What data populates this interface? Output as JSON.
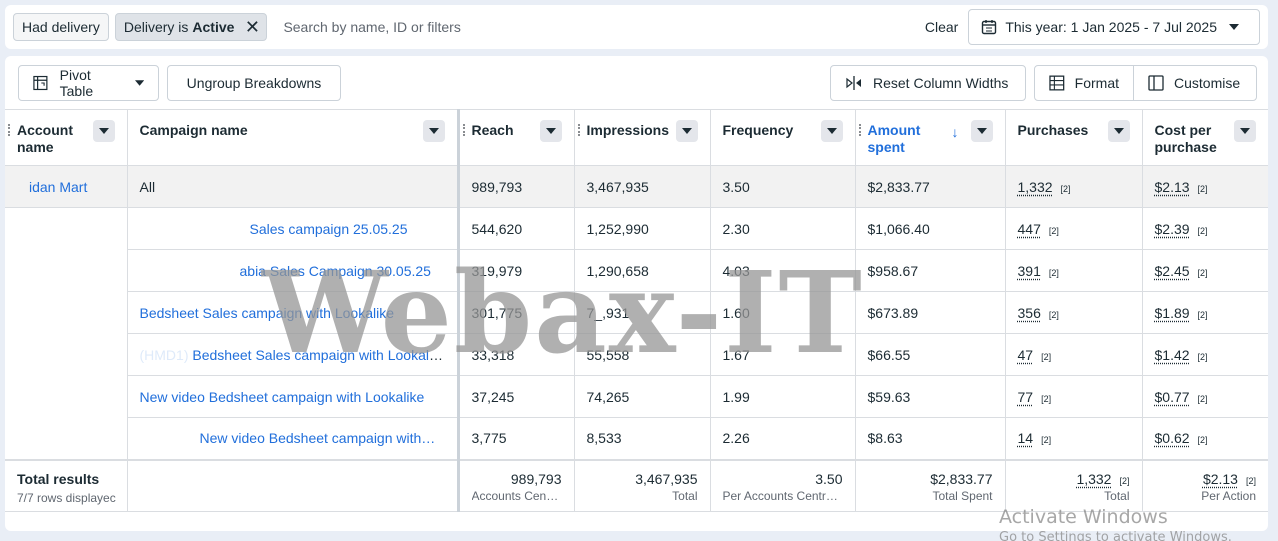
{
  "filters": {
    "chip1": "Had delivery",
    "chip2_prefix": "Delivery is",
    "chip2_value": "Active",
    "search_placeholder": "Search by name, ID or filters",
    "clear": "Clear",
    "date_range": "This year: 1 Jan 2025 - 7 Jul 2025"
  },
  "toolbar": {
    "pivot": "Pivot Table",
    "ungroup": "Ungroup Breakdowns",
    "reset": "Reset Column Widths",
    "format": "Format",
    "customise": "Customise"
  },
  "columns": {
    "account": "Account name",
    "campaign": "Campaign name",
    "reach": "Reach",
    "impressions": "Impressions",
    "frequency": "Frequency",
    "amount": "Amount spent",
    "purchases": "Purchases",
    "cpp": "Cost per purchase"
  },
  "account_name": "idan Mart",
  "rows": [
    {
      "campaign": "All",
      "reach": "989,793",
      "impressions": "3,467,935",
      "frequency": "3.50",
      "amount": "$2,833.77",
      "purchases": "1,332",
      "cpp": "$2.13"
    },
    {
      "campaign": "Sales campaign 25.05.25",
      "reach": "544,620",
      "impressions": "1,252,990",
      "frequency": "2.30",
      "amount": "$1,066.40",
      "purchases": "447",
      "cpp": "$2.39"
    },
    {
      "campaign": "abia Sales Campaign 30.05.25",
      "reach": "319,979",
      "impressions": "1,290,658",
      "frequency": "4.03",
      "amount": "$958.67",
      "purchases": "391",
      "cpp": "$2.45"
    },
    {
      "campaign": "Bedsheet Sales campaign with Lookalike",
      "reach": "301,775",
      "impressions": "7_,931",
      "frequency": "1.60",
      "amount": "$673.89",
      "purchases": "356",
      "cpp": "$1.89"
    },
    {
      "campaign": "Bedsheet Sales campaign with Lookalike",
      "reach": "33,318",
      "impressions": "55,558",
      "frequency": "1.67",
      "amount": "$66.55",
      "purchases": "47",
      "cpp": "$1.42"
    },
    {
      "campaign": "New video Bedsheet campaign with Lookalike",
      "reach": "37,245",
      "impressions": "74,265",
      "frequency": "1.99",
      "amount": "$59.63",
      "purchases": "77",
      "cpp": "$0.77"
    },
    {
      "campaign": "New video Bedsheet campaign with…",
      "reach": "3,775",
      "impressions": "8,533",
      "frequency": "2.26",
      "amount": "$8.63",
      "purchases": "14",
      "cpp": "$0.62"
    }
  ],
  "row_prefixes": [
    "",
    "",
    "",
    "",
    "(HMD1)",
    "",
    ""
  ],
  "sup": "[2]",
  "totals": {
    "title": "Total results",
    "sub": "7/7 rows displayec",
    "reach": "989,793",
    "reach_label": "Accounts Centre...",
    "impressions": "3,467,935",
    "impressions_label": "Total",
    "frequency": "3.50",
    "frequency_label": "Per Accounts Centre a...",
    "amount": "$2,833.77",
    "amount_label": "Total Spent",
    "purchases": "1,332",
    "purchases_label": "Total",
    "cpp": "$2.13",
    "cpp_label": "Per Action"
  },
  "watermark": "Webax-IT",
  "activate_line1": "Activate Windows",
  "activate_line2": "Go to Settings to activate Windows.",
  "colors": {
    "link": "#216fdb",
    "border": "#dadde1",
    "all_row_bg": "#f2f2f2"
  }
}
